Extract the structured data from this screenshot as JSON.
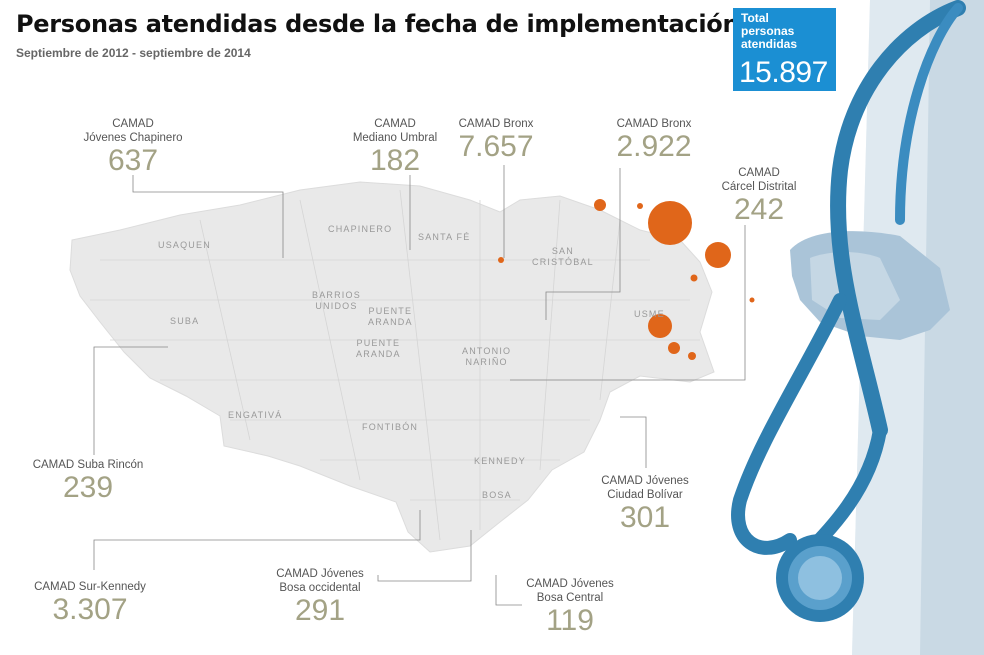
{
  "title": "Personas atendidas desde la fecha de implementación",
  "subtitle": "Septiembre de 2012 - septiembre de 2014",
  "total": {
    "label": "Total\npersonas\natendidas",
    "value": "15.897"
  },
  "centers": [
    {
      "name": "CAMAD\nJóvenes Chapinero",
      "value": "637"
    },
    {
      "name": "CAMAD\nMediano Umbral",
      "value": "182"
    },
    {
      "name": "CAMAD Bronx",
      "value": "7.657"
    },
    {
      "name": "CAMAD Bronx",
      "value": "2.922"
    },
    {
      "name": "CAMAD\nCárcel Distrital",
      "value": "242"
    },
    {
      "name": "CAMAD Suba Rincón",
      "value": "239"
    },
    {
      "name": "CAMAD Jóvenes\nCiudad Bolívar",
      "value": "301"
    },
    {
      "name": "CAMAD Sur-Kennedy",
      "value": "3.307"
    },
    {
      "name": "CAMAD Jóvenes\nBosa occidental",
      "value": "291"
    },
    {
      "name": "CAMAD Jóvenes\nBosa Central",
      "value": "119"
    }
  ],
  "districts": [
    "USAQUEN",
    "CHAPINERO",
    "SANTA FÉ",
    "SAN\nCRISTÓBAL",
    "BARRIOS\nUNIDOS",
    "PUENTE\nARANDA",
    "PUENTE\nARANDA",
    "SUBA",
    "USME",
    "ANTONIO\nNARIÑO",
    "ENGATIVÁ",
    "FONTIBÓN",
    "KENNEDY",
    "BOSA"
  ],
  "colors": {
    "accent_blue": "#1b8fd3",
    "bubble": "#e0661a",
    "label_value": "#a3a285",
    "map_fill": "#e9e9e9",
    "stethoscope": "#2f7fb0"
  }
}
